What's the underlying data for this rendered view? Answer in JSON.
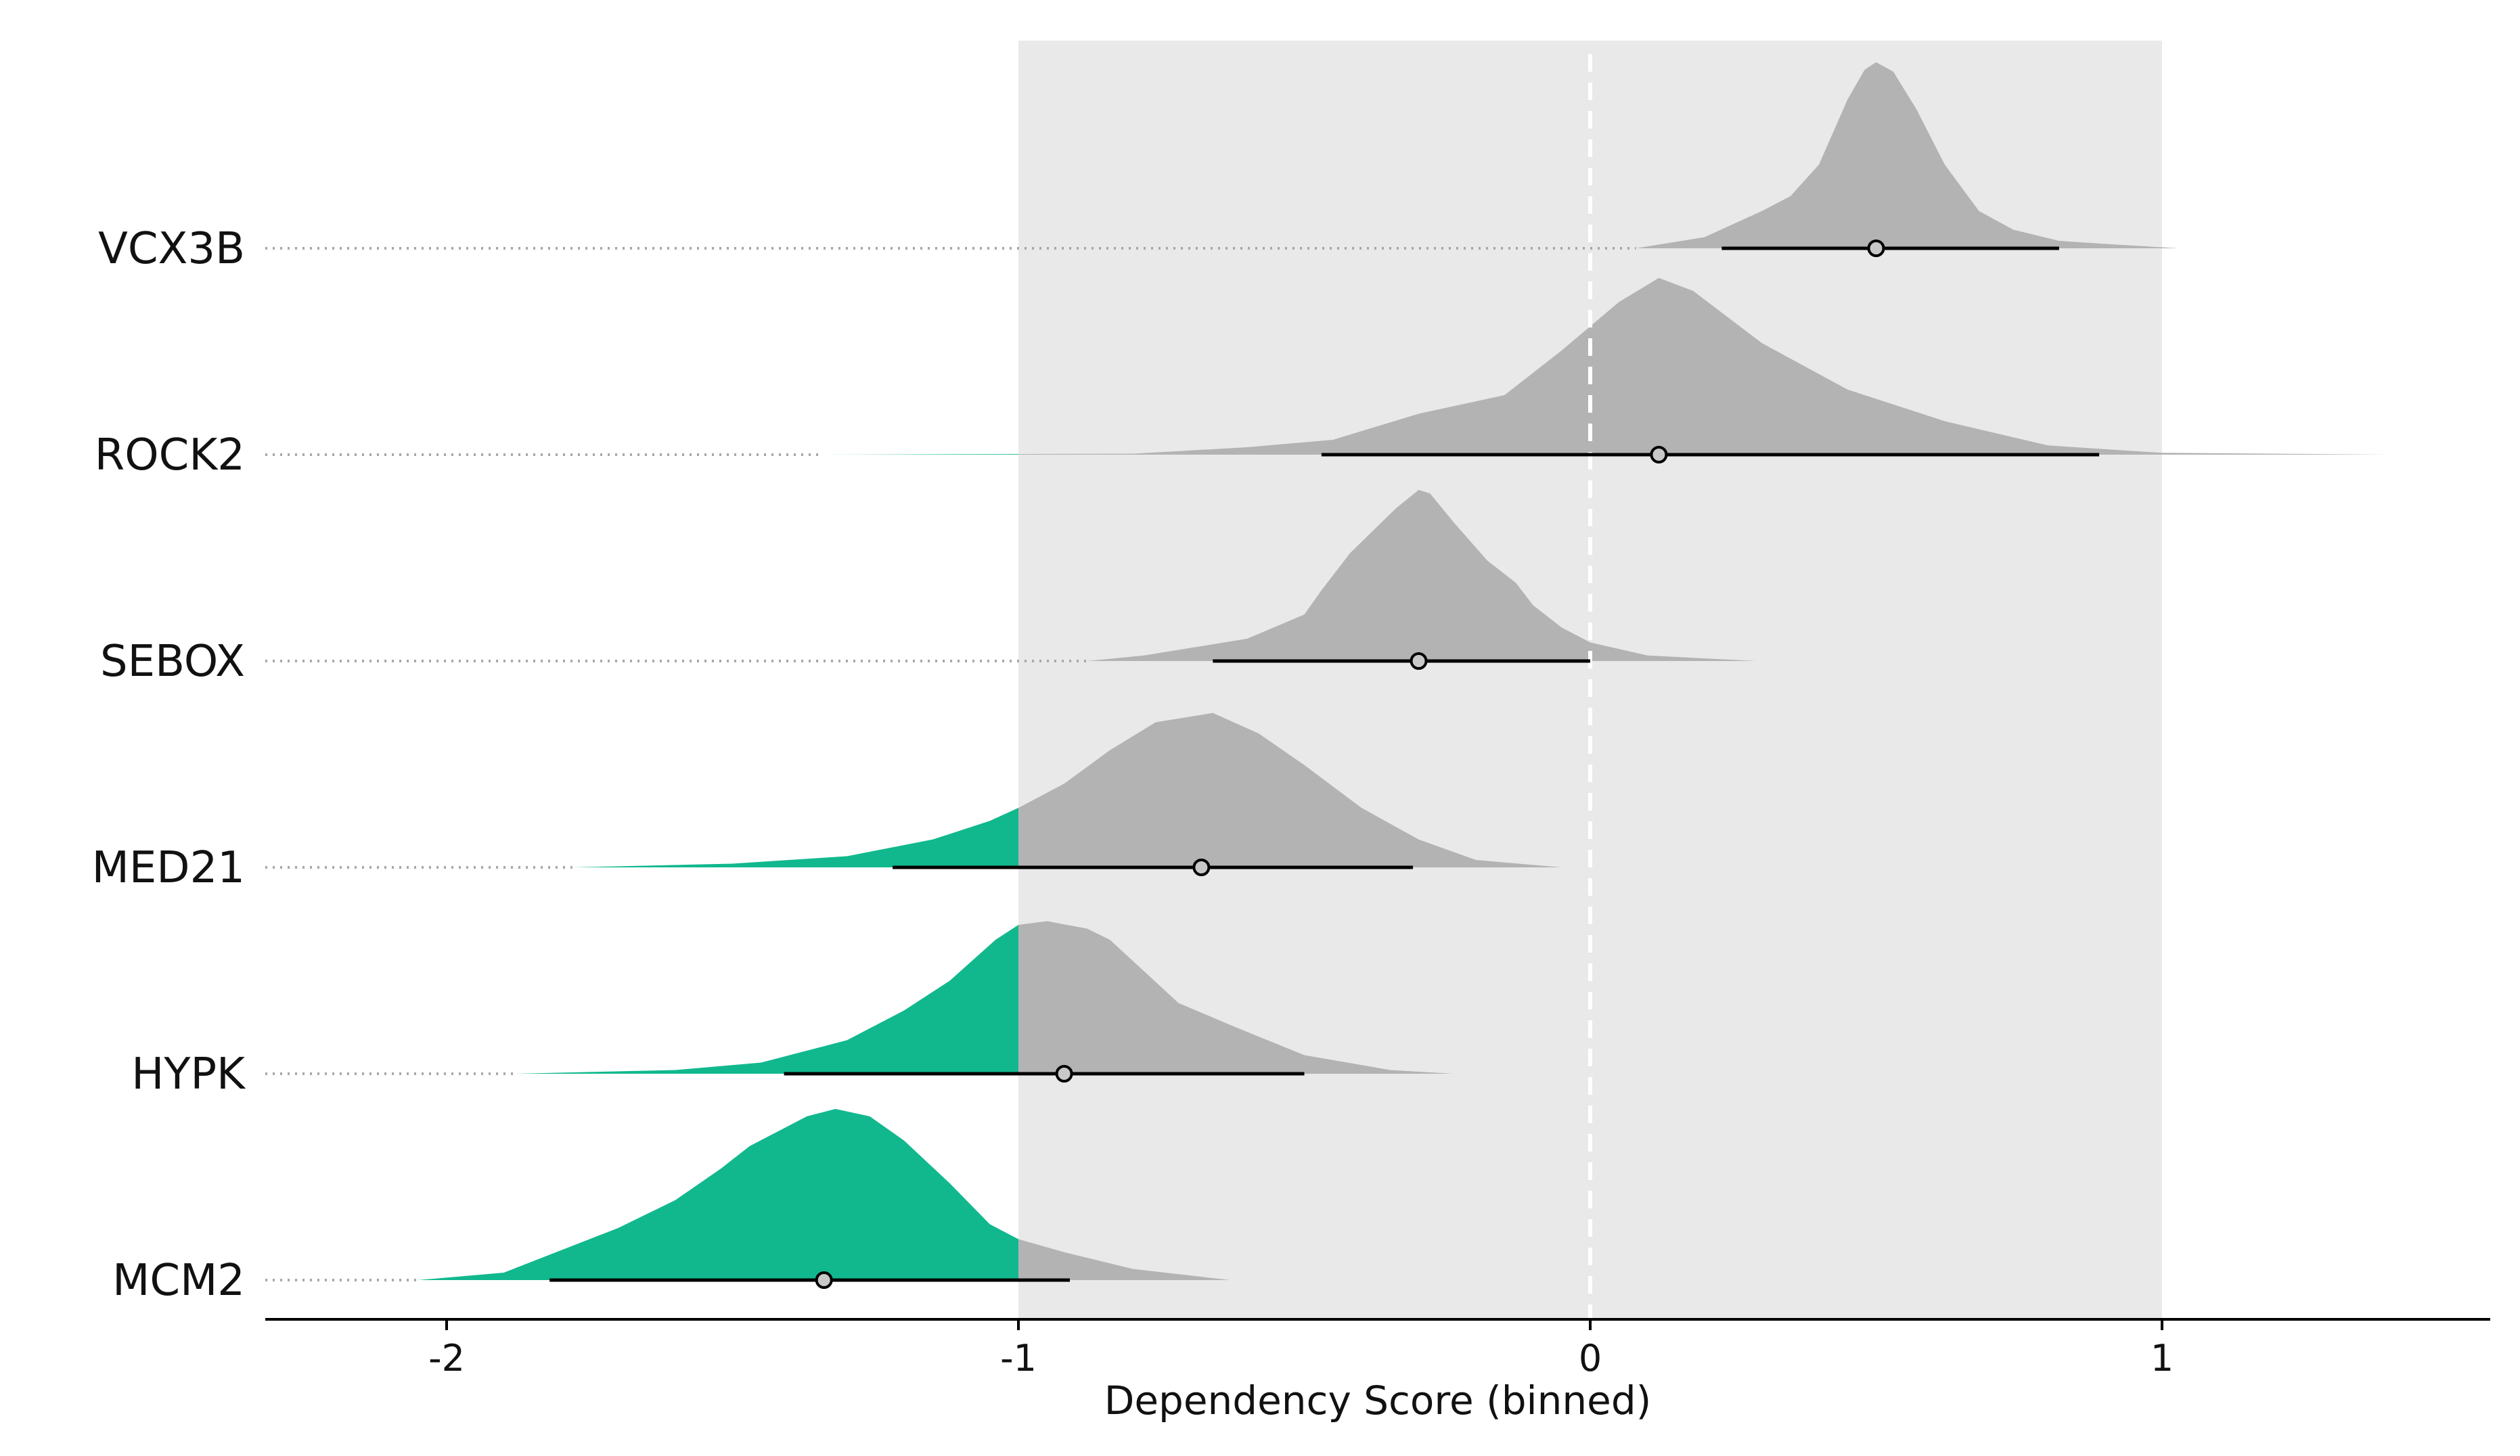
{
  "colors": {
    "highlight_band": "#e9e9e9",
    "density_neutral": "#b3b3b3",
    "density_dependent": "#11b88d",
    "zero_line": "#ffffff",
    "guide_line": "#a8a8a8",
    "interval": "#000000",
    "median_point_fill": "#c8c8c8"
  },
  "chart_data": {
    "type": "ridgeline-density",
    "title": "",
    "xlabel": "Dependency Score (binned)",
    "ylabel": "",
    "xlim": [
      -2.35,
      1.58
    ],
    "xticks": [
      -2,
      -1,
      0,
      1
    ],
    "xtick_labels": [
      "-2",
      "-1",
      "0",
      "1"
    ],
    "highlight_band": [
      -1,
      1
    ],
    "reference_line": 0,
    "dependency_threshold": -1,
    "genes": [
      {
        "name": "VCX3B",
        "median": 0.5,
        "interval": [
          0.23,
          0.82
        ],
        "density": [
          [
            0.08,
            0
          ],
          [
            0.2,
            0.06
          ],
          [
            0.3,
            0.2
          ],
          [
            0.35,
            0.28
          ],
          [
            0.4,
            0.45
          ],
          [
            0.45,
            0.8
          ],
          [
            0.48,
            0.96
          ],
          [
            0.5,
            1
          ],
          [
            0.53,
            0.95
          ],
          [
            0.57,
            0.75
          ],
          [
            0.62,
            0.45
          ],
          [
            0.68,
            0.2
          ],
          [
            0.74,
            0.1
          ],
          [
            0.82,
            0.04
          ],
          [
            0.92,
            0.02
          ],
          [
            1.03,
            0
          ]
        ]
      },
      {
        "name": "ROCK2",
        "median": 0.12,
        "interval": [
          -0.47,
          0.89
        ],
        "density": [
          [
            -1.35,
            0
          ],
          [
            -0.8,
            0.005
          ],
          [
            -0.6,
            0.04
          ],
          [
            -0.45,
            0.08
          ],
          [
            -0.3,
            0.22
          ],
          [
            -0.15,
            0.32
          ],
          [
            -0.05,
            0.56
          ],
          [
            0.05,
            0.82
          ],
          [
            0.12,
            0.95
          ],
          [
            0.18,
            0.88
          ],
          [
            0.3,
            0.6
          ],
          [
            0.45,
            0.35
          ],
          [
            0.62,
            0.18
          ],
          [
            0.8,
            0.05
          ],
          [
            1.0,
            0.01
          ],
          [
            1.4,
            0
          ]
        ]
      },
      {
        "name": "SEBOX",
        "median": -0.3,
        "interval": [
          -0.66,
          0.0
        ],
        "density": [
          [
            -0.88,
            0
          ],
          [
            -0.78,
            0.03
          ],
          [
            -0.7,
            0.07
          ],
          [
            -0.6,
            0.12
          ],
          [
            -0.5,
            0.25
          ],
          [
            -0.47,
            0.38
          ],
          [
            -0.42,
            0.58
          ],
          [
            -0.38,
            0.7
          ],
          [
            -0.34,
            0.82
          ],
          [
            -0.3,
            0.92
          ],
          [
            -0.28,
            0.9
          ],
          [
            -0.24,
            0.75
          ],
          [
            -0.18,
            0.54
          ],
          [
            -0.13,
            0.42
          ],
          [
            -0.1,
            0.3
          ],
          [
            -0.05,
            0.18
          ],
          [
            0.0,
            0.1
          ],
          [
            0.1,
            0.03
          ],
          [
            0.29,
            0
          ]
        ]
      },
      {
        "name": "MED21",
        "median": -0.68,
        "interval": [
          -1.22,
          -0.31
        ],
        "density": [
          [
            -1.78,
            0
          ],
          [
            -1.5,
            0.02
          ],
          [
            -1.3,
            0.06
          ],
          [
            -1.15,
            0.15
          ],
          [
            -1.05,
            0.25
          ],
          [
            -1.0,
            0.32
          ],
          [
            -0.92,
            0.45
          ],
          [
            -0.84,
            0.63
          ],
          [
            -0.76,
            0.78
          ],
          [
            -0.66,
            0.83
          ],
          [
            -0.58,
            0.72
          ],
          [
            -0.5,
            0.55
          ],
          [
            -0.4,
            0.32
          ],
          [
            -0.3,
            0.15
          ],
          [
            -0.2,
            0.04
          ],
          [
            -0.05,
            0
          ]
        ]
      },
      {
        "name": "HYPK",
        "median": -0.92,
        "interval": [
          -1.41,
          -0.5
        ],
        "density": [
          [
            -1.88,
            0
          ],
          [
            -1.6,
            0.02
          ],
          [
            -1.45,
            0.06
          ],
          [
            -1.3,
            0.18
          ],
          [
            -1.2,
            0.34
          ],
          [
            -1.12,
            0.5
          ],
          [
            -1.04,
            0.72
          ],
          [
            -1.0,
            0.8
          ],
          [
            -0.95,
            0.82
          ],
          [
            -0.88,
            0.78
          ],
          [
            -0.84,
            0.72
          ],
          [
            -0.78,
            0.55
          ],
          [
            -0.72,
            0.38
          ],
          [
            -0.62,
            0.25
          ],
          [
            -0.5,
            0.1
          ],
          [
            -0.35,
            0.02
          ],
          [
            -0.24,
            0
          ]
        ]
      },
      {
        "name": "MCM2",
        "median": -1.34,
        "interval": [
          -1.82,
          -0.91
        ],
        "density": [
          [
            -2.05,
            0
          ],
          [
            -1.9,
            0.04
          ],
          [
            -1.7,
            0.28
          ],
          [
            -1.6,
            0.43
          ],
          [
            -1.52,
            0.6
          ],
          [
            -1.47,
            0.72
          ],
          [
            -1.42,
            0.8
          ],
          [
            -1.37,
            0.88
          ],
          [
            -1.32,
            0.92
          ],
          [
            -1.26,
            0.88
          ],
          [
            -1.2,
            0.75
          ],
          [
            -1.12,
            0.52
          ],
          [
            -1.05,
            0.3
          ],
          [
            -1.0,
            0.22
          ],
          [
            -0.92,
            0.15
          ],
          [
            -0.8,
            0.06
          ],
          [
            -0.63,
            0
          ]
        ]
      }
    ]
  }
}
